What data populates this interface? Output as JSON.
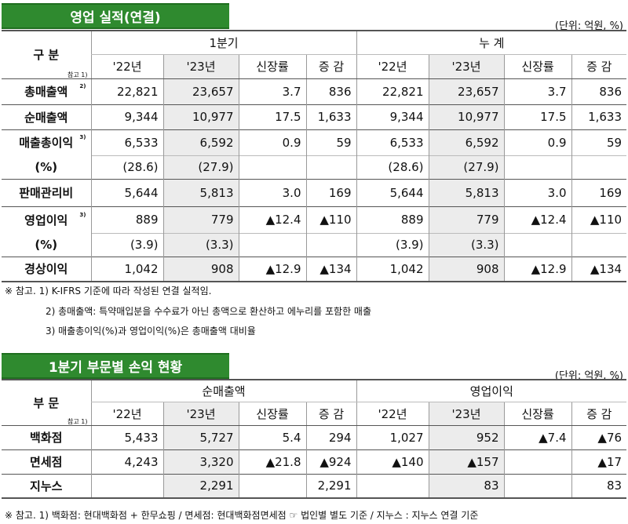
{
  "section1": {
    "title": "영업 실적(연결)",
    "unit": "(단위: 억원, %)",
    "header": {
      "category": "구 분",
      "group1": "1분기",
      "group2": "누 계",
      "cols": [
        "'22년",
        "'23년",
        "신장률",
        "증 감",
        "'22년",
        "'23년",
        "신장률",
        "증 감"
      ],
      "ref": "참고 1)"
    },
    "rows": [
      {
        "label": "총매출액",
        "sup": "2)",
        "cells": [
          "22,821",
          "23,657",
          "3.7",
          "836",
          "22,821",
          "23,657",
          "3.7",
          "836"
        ]
      },
      {
        "label": "순매출액",
        "sup": "",
        "cells": [
          "9,344",
          "10,977",
          "17.5",
          "1,633",
          "9,344",
          "10,977",
          "17.5",
          "1,633"
        ]
      },
      {
        "label": "매출총이익",
        "sup": "3)",
        "cells": [
          "6,533",
          "6,592",
          "0.9",
          "59",
          "6,533",
          "6,592",
          "0.9",
          "59"
        ]
      },
      {
        "label": "(%)",
        "sup": "",
        "cells": [
          "(28.6)",
          "(27.9)",
          "",
          "",
          "(28.6)",
          "(27.9)",
          "",
          ""
        ]
      },
      {
        "label": "판매관리비",
        "sup": "",
        "cells": [
          "5,644",
          "5,813",
          "3.0",
          "169",
          "5,644",
          "5,813",
          "3.0",
          "169"
        ]
      },
      {
        "label": "영업이익",
        "sup": "3)",
        "cells": [
          "889",
          "779",
          "▲12.4",
          "▲110",
          "889",
          "779",
          "▲12.4",
          "▲110"
        ]
      },
      {
        "label": "(%)",
        "sup": "",
        "cells": [
          "(3.9)",
          "(3.3)",
          "",
          "",
          "(3.9)",
          "(3.3)",
          "",
          ""
        ]
      },
      {
        "label": "경상이익",
        "sup": "",
        "cells": [
          "1,042",
          "908",
          "▲12.9",
          "▲134",
          "1,042",
          "908",
          "▲12.9",
          "▲134"
        ]
      }
    ],
    "notes": [
      "※ 참고. 1) K-IFRS 기준에 따라 작성된 연결 실적임.",
      "2) 총매출액: 특약매입분을 수수료가 아닌 총액으로 환산하고 에누리를 포함한 매출",
      "3) 매출총이익(%)과 영업이익(%)은 총매출액 대비율"
    ]
  },
  "section2": {
    "title": "1분기 부문별 손익 현황",
    "unit": "(단위: 억원, %)",
    "header": {
      "category": "부 문",
      "group1": "순매출액",
      "group2": "영업이익",
      "cols": [
        "'22년",
        "'23년",
        "신장률",
        "증 감",
        "'22년",
        "'23년",
        "신장률",
        "증 감"
      ],
      "ref": "참고 1)"
    },
    "rows": [
      {
        "label": "백화점",
        "cells": [
          "5,433",
          "5,727",
          "5.4",
          "294",
          "1,027",
          "952",
          "▲7.4",
          "▲76"
        ]
      },
      {
        "label": "면세점",
        "cells": [
          "4,243",
          "3,320",
          "▲21.8",
          "▲924",
          "▲140",
          "▲157",
          "",
          "▲17"
        ]
      },
      {
        "label": "지누스",
        "cells": [
          "",
          "2,291",
          "",
          "2,291",
          "",
          "83",
          "",
          "83"
        ]
      }
    ],
    "note": "※ 참고. 1) 백화점: 현대백화점 + 한무쇼핑 / 면세점: 현대백화점면세점 ☞ 법인별 별도 기준 / 지누스 : 지누스 연결 기준"
  }
}
